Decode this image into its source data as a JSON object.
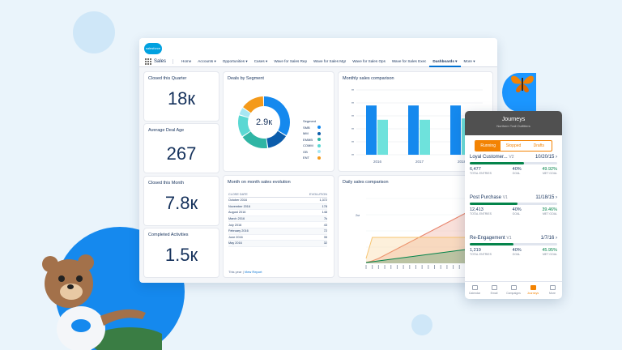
{
  "app": {
    "logo_text": "salesforce",
    "name": "Sales"
  },
  "nav": {
    "items": [
      {
        "label": "Home",
        "dropdown": false,
        "active": false
      },
      {
        "label": "Accounts",
        "dropdown": true,
        "active": false
      },
      {
        "label": "Opportunities",
        "dropdown": true,
        "active": false
      },
      {
        "label": "Cases",
        "dropdown": true,
        "active": false
      },
      {
        "label": "Wave for Sales Rep",
        "dropdown": false,
        "active": false
      },
      {
        "label": "Wave for Sales Mgr",
        "dropdown": false,
        "active": false
      },
      {
        "label": "Wave for Sales Ops",
        "dropdown": false,
        "active": false
      },
      {
        "label": "Wave for Sales Exec",
        "dropdown": false,
        "active": false
      },
      {
        "label": "Dashboards",
        "dropdown": true,
        "active": true
      }
    ],
    "more_label": "More"
  },
  "kpis": {
    "closed_quarter": {
      "title": "Closed this Quarter",
      "value": "18к"
    },
    "avg_deal_age": {
      "title": "Average Deal Age",
      "value": "267"
    },
    "closed_month": {
      "title": "Closed this Month",
      "value": "7.8к"
    },
    "completed_activities": {
      "title": "Completed Activities",
      "value": "1.5к"
    }
  },
  "deals_by_segment": {
    "title": "Deals by Segment",
    "center_value": "2.9к",
    "legend_title": "Segment",
    "segments": [
      {
        "label": "SMB",
        "color": "#1589ee"
      },
      {
        "label": "MM",
        "color": "#0b5cab"
      },
      {
        "label": "EMMB",
        "color": "#2fb5a4"
      },
      {
        "label": "COMM",
        "color": "#5ad8d3"
      },
      {
        "label": "GB",
        "color": "#a7e7f3"
      },
      {
        "label": "ENT",
        "color": "#f49a1b"
      }
    ]
  },
  "monthly_sales": {
    "title": "Monthly sales comparison",
    "chart_data": {
      "type": "bar",
      "categories": [
        "2016",
        "2017",
        "2018"
      ],
      "series": [
        {
          "values": [
            3.8,
            3.8,
            3.8
          ],
          "color": "#1589ee"
        },
        {
          "values": [
            2.7,
            2.7,
            2.8
          ],
          "color": "#6ee2dc"
        }
      ],
      "ylim": [
        0,
        5
      ],
      "grid": true
    }
  },
  "month_evolution": {
    "title": "Month on month sales evolution",
    "columns": [
      "CLOSE DATE",
      "EVOLUTION"
    ],
    "rows": [
      [
        "October 2016",
        "1,372"
      ],
      [
        "November 2016",
        "178"
      ],
      [
        "August 2016",
        "148"
      ],
      [
        "March 2016",
        "7k"
      ],
      [
        "July 2016",
        "43"
      ],
      [
        "February 2016",
        "72"
      ],
      [
        "June 2016",
        "35"
      ],
      [
        "May 2016",
        "32"
      ]
    ],
    "footer": "This year",
    "footer_link": "View Report"
  },
  "daily_sales": {
    "title": "Daily sales comparison",
    "y_tick": "2м",
    "chart_data": {
      "type": "area",
      "series": [
        {
          "values": [
            0.05,
            0.15,
            0.3,
            0.5,
            0.7,
            0.9,
            1.1,
            1.3,
            1.5,
            1.7,
            1.9,
            2.1,
            2.3,
            2.5,
            2.7,
            2.9,
            3.1,
            3.3,
            3.5,
            3.7
          ],
          "color": "#e8836b"
        },
        {
          "values": [
            0.3,
            1.6,
            1.6,
            1.6,
            1.6,
            1.6,
            1.6,
            1.6,
            1.6,
            1.6,
            1.6,
            1.6,
            1.6,
            1.6,
            1.6,
            1.6,
            1.6,
            1.6,
            1.6,
            1.6
          ],
          "color": "#f6c471"
        },
        {
          "values": [
            0.05,
            0.1,
            0.15,
            0.2,
            0.25,
            0.3,
            0.35,
            0.4,
            0.45,
            0.5,
            0.55,
            0.6,
            0.65,
            0.7,
            0.75,
            0.8,
            0.85,
            0.9,
            0.95,
            1.0
          ],
          "color": "#04844b"
        }
      ],
      "ylim": [
        0,
        4
      ]
    }
  },
  "phone": {
    "title": "Journeys",
    "subtitle": "Northern Trail Outfitters",
    "tabs": [
      {
        "label": "Running",
        "active": true
      },
      {
        "label": "Stopped",
        "active": false
      },
      {
        "label": "Drafts",
        "active": false
      }
    ],
    "journeys": [
      {
        "name": "Loyal Customer...",
        "version": "V2",
        "date": "10/20/15",
        "progress": 0.62,
        "entries": "6,477",
        "entries_label": "TOTAL ENTRIES",
        "goal": "40%",
        "goal_label": "GOAL",
        "met": "49.92%",
        "met_label": "MET GOAL"
      },
      {
        "name": "Post Purchase",
        "version": "V1",
        "date": "11/18/15",
        "progress": 0.55,
        "entries": "12,413",
        "entries_label": "TOTAL ENTRIES",
        "goal": "40%",
        "goal_label": "GOAL",
        "met": "39.46%",
        "met_label": "MET GOAL"
      },
      {
        "name": "Re-Engagement",
        "version": "V1",
        "date": "1/7/16",
        "progress": 0.5,
        "entries": "1,219",
        "entries_label": "TOTAL ENTRIES",
        "goal": "40%",
        "goal_label": "GOAL",
        "met": "45.95%",
        "met_label": "MET GOAL"
      }
    ],
    "footer": [
      {
        "label": "Calendar",
        "active": false
      },
      {
        "label": "Email",
        "active": false
      },
      {
        "label": "Campaigns",
        "active": false
      },
      {
        "label": "Journeys",
        "active": true
      },
      {
        "label": "More",
        "active": false
      }
    ]
  }
}
